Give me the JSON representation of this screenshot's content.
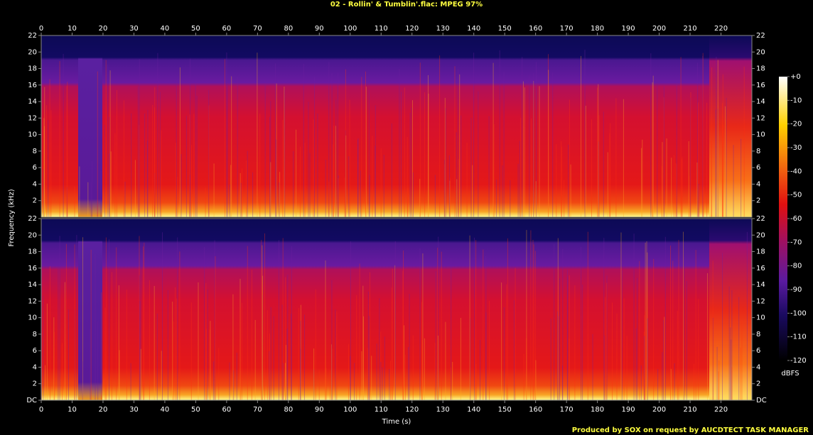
{
  "chart_data": [
    {
      "type": "spectrogram",
      "title": "02 - Rollin' & Tumblin'.flac: MPEG 97%",
      "ylabel": "Frequency (kHz)",
      "xlim": [
        0,
        230
      ],
      "xticks": [
        0,
        10,
        20,
        30,
        40,
        50,
        60,
        70,
        80,
        90,
        100,
        110,
        120,
        130,
        140,
        150,
        160,
        170,
        180,
        190,
        200,
        210,
        220
      ],
      "ylim": [
        0,
        22
      ],
      "yticks": [
        2,
        4,
        6,
        8,
        10,
        12,
        14,
        16,
        18,
        20,
        22
      ]
    },
    {
      "type": "spectrogram",
      "xlabel": "Time (s)",
      "xlim": [
        0,
        230
      ],
      "xticks": [
        0,
        10,
        20,
        30,
        40,
        50,
        60,
        70,
        80,
        90,
        100,
        110,
        120,
        130,
        140,
        150,
        160,
        170,
        180,
        190,
        200,
        210,
        220
      ],
      "ylim": [
        0,
        22
      ],
      "yticks": [
        {
          "value": 0,
          "label": "DC"
        },
        2,
        4,
        6,
        8,
        10,
        12,
        14,
        16,
        18,
        20,
        22
      ]
    }
  ],
  "colorbar": {
    "label": "dBFS",
    "lim": [
      -120,
      0
    ],
    "ticks": [
      {
        "value": 0,
        "label": "+0"
      },
      -10,
      -20,
      -30,
      -40,
      -50,
      -60,
      -70,
      -80,
      -90,
      -100,
      -110,
      -120
    ]
  },
  "footer": "Produced by SOX on request by AUCDTECT TASK MANAGER"
}
